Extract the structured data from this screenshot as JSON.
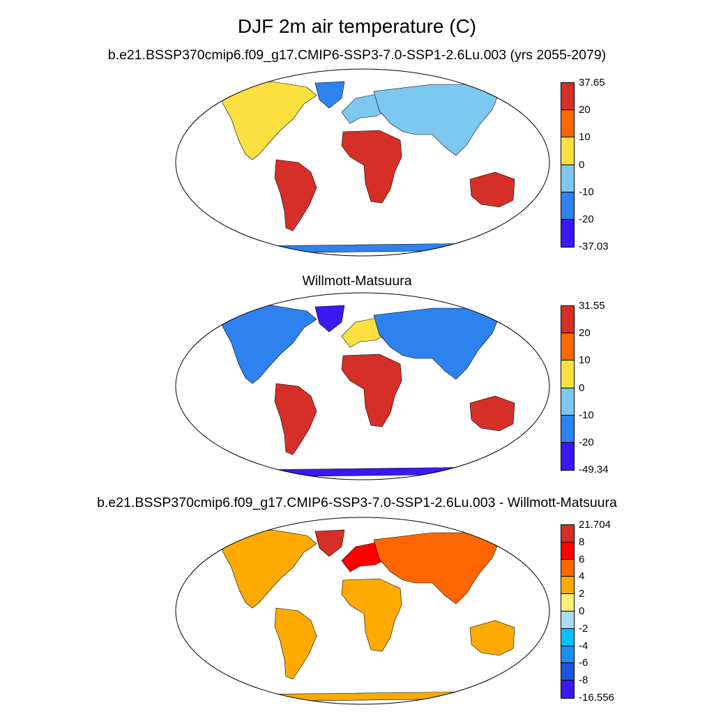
{
  "title": "DJF 2m air temperature (C)",
  "panels": [
    {
      "id": "model",
      "subtitle": "b.e21.BSSP370cmip6.f09_g17.CMIP6-SSP3-7.0-SSP1-2.6Lu.003 (yrs 2055-2079)",
      "colorbar": {
        "labels": [
          "37.65",
          "20",
          "10",
          "0",
          "-10",
          "-20",
          "-37.03"
        ],
        "colors": [
          "#d62f27",
          "#ff6600",
          "#fce040",
          "#7cc8f0",
          "#2e82f0",
          "#3b18f5"
        ]
      },
      "regions": {
        "north_america": "#fce040",
        "south_america": "#d62f27",
        "africa": "#d62f27",
        "europe": "#7cc8f0",
        "asia": "#7cc8f0",
        "australia": "#d62f27",
        "greenland": "#2e82f0",
        "antarctica": "#2e82f0"
      }
    },
    {
      "id": "obs",
      "subtitle": "Willmott-Matsuura",
      "colorbar": {
        "labels": [
          "31.55",
          "20",
          "10",
          "0",
          "-10",
          "-20",
          "-49.34"
        ],
        "colors": [
          "#d62f27",
          "#ff6600",
          "#fce040",
          "#7cc8f0",
          "#2e82f0",
          "#3b18f5"
        ]
      },
      "regions": {
        "north_america": "#2e82f0",
        "south_america": "#d62f27",
        "africa": "#d62f27",
        "europe": "#fce040",
        "asia": "#2e82f0",
        "australia": "#d62f27",
        "greenland": "#3b18f5",
        "antarctica": "#3b18f5"
      }
    },
    {
      "id": "diff",
      "subtitle": "b.e21.BSSP370cmip6.f09_g17.CMIP6-SSP3-7.0-SSP1-2.6Lu.003 - Willmott-Matsuura",
      "colorbar": {
        "labels": [
          "21.704",
          "8",
          "6",
          "4",
          "2",
          "0",
          "-2",
          "-4",
          "-6",
          "-8",
          "-16.556"
        ],
        "colors": [
          "#d62f27",
          "#ff0000",
          "#ff6600",
          "#ffaa00",
          "#fff07a",
          "#aadcf0",
          "#00c3ff",
          "#1f8ef0",
          "#1a55e0",
          "#3b18f5"
        ]
      },
      "regions": {
        "north_america": "#ffaa00",
        "south_america": "#ffaa00",
        "africa": "#ffaa00",
        "europe": "#ff0000",
        "asia": "#ff6600",
        "australia": "#ffaa00",
        "greenland": "#d62f27",
        "antarctica": "#ffaa00"
      }
    }
  ]
}
